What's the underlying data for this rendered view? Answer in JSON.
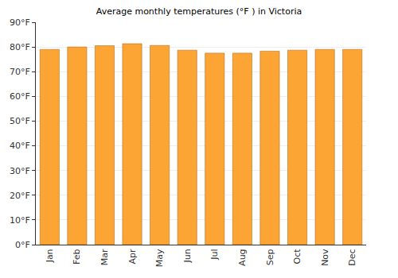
{
  "chart_data": {
    "type": "bar",
    "title": "Average monthly temperatures (°F ) in Victoria",
    "categories": [
      "Jan",
      "Feb",
      "Mar",
      "Apr",
      "May",
      "Jun",
      "Jul",
      "Aug",
      "Sep",
      "Oct",
      "Nov",
      "Dec"
    ],
    "values": [
      79,
      80,
      80.5,
      81.3,
      80.6,
      78.7,
      77.5,
      77.5,
      78.3,
      78.7,
      79,
      79
    ],
    "color": "#fca534",
    "ylim": [
      0,
      90
    ],
    "yticks": [
      {
        "value": 0,
        "label": "0°F"
      },
      {
        "value": 10,
        "label": "10°F"
      },
      {
        "value": 20,
        "label": "20°F"
      },
      {
        "value": 30,
        "label": "30°F"
      },
      {
        "value": 40,
        "label": "40°F"
      },
      {
        "value": 50,
        "label": "50°F"
      },
      {
        "value": 60,
        "label": "60°F"
      },
      {
        "value": 70,
        "label": "70°F"
      },
      {
        "value": 80,
        "label": "80°F"
      },
      {
        "value": 90,
        "label": "90°F"
      }
    ],
    "grid": true
  }
}
